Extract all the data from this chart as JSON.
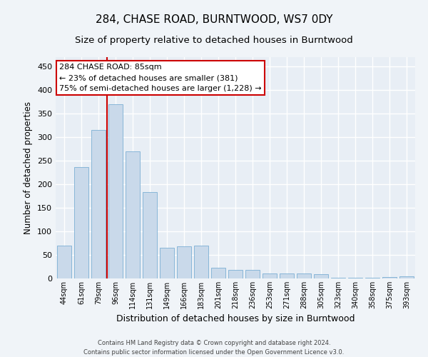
{
  "title1": "284, CHASE ROAD, BURNTWOOD, WS7 0DY",
  "title2": "Size of property relative to detached houses in Burntwood",
  "xlabel": "Distribution of detached houses by size in Burntwood",
  "ylabel": "Number of detached properties",
  "categories": [
    "44sqm",
    "61sqm",
    "79sqm",
    "96sqm",
    "114sqm",
    "131sqm",
    "149sqm",
    "166sqm",
    "183sqm",
    "201sqm",
    "218sqm",
    "236sqm",
    "253sqm",
    "271sqm",
    "288sqm",
    "305sqm",
    "323sqm",
    "340sqm",
    "358sqm",
    "375sqm",
    "393sqm"
  ],
  "values": [
    70,
    237,
    315,
    370,
    270,
    183,
    65,
    68,
    70,
    22,
    18,
    18,
    10,
    10,
    10,
    9,
    1,
    1,
    1,
    3,
    4
  ],
  "bar_color": "#c9d9ea",
  "bar_edge_color": "#7bafd4",
  "property_label": "284 CHASE ROAD: 85sqm",
  "annotation_line1": "← 23% of detached houses are smaller (381)",
  "annotation_line2": "75% of semi-detached houses are larger (1,228) →",
  "vline_x_index": 2.5,
  "fig_bg_color": "#f0f4f8",
  "axes_bg_color": "#e8eef5",
  "grid_color": "#ffffff",
  "annotation_box_color": "#ffffff",
  "annotation_box_edge": "#cc0000",
  "vline_color": "#cc0000",
  "footer1": "Contains HM Land Registry data © Crown copyright and database right 2024.",
  "footer2": "Contains public sector information licensed under the Open Government Licence v3.0.",
  "ylim": [
    0,
    470
  ],
  "yticks": [
    0,
    50,
    100,
    150,
    200,
    250,
    300,
    350,
    400,
    450
  ]
}
